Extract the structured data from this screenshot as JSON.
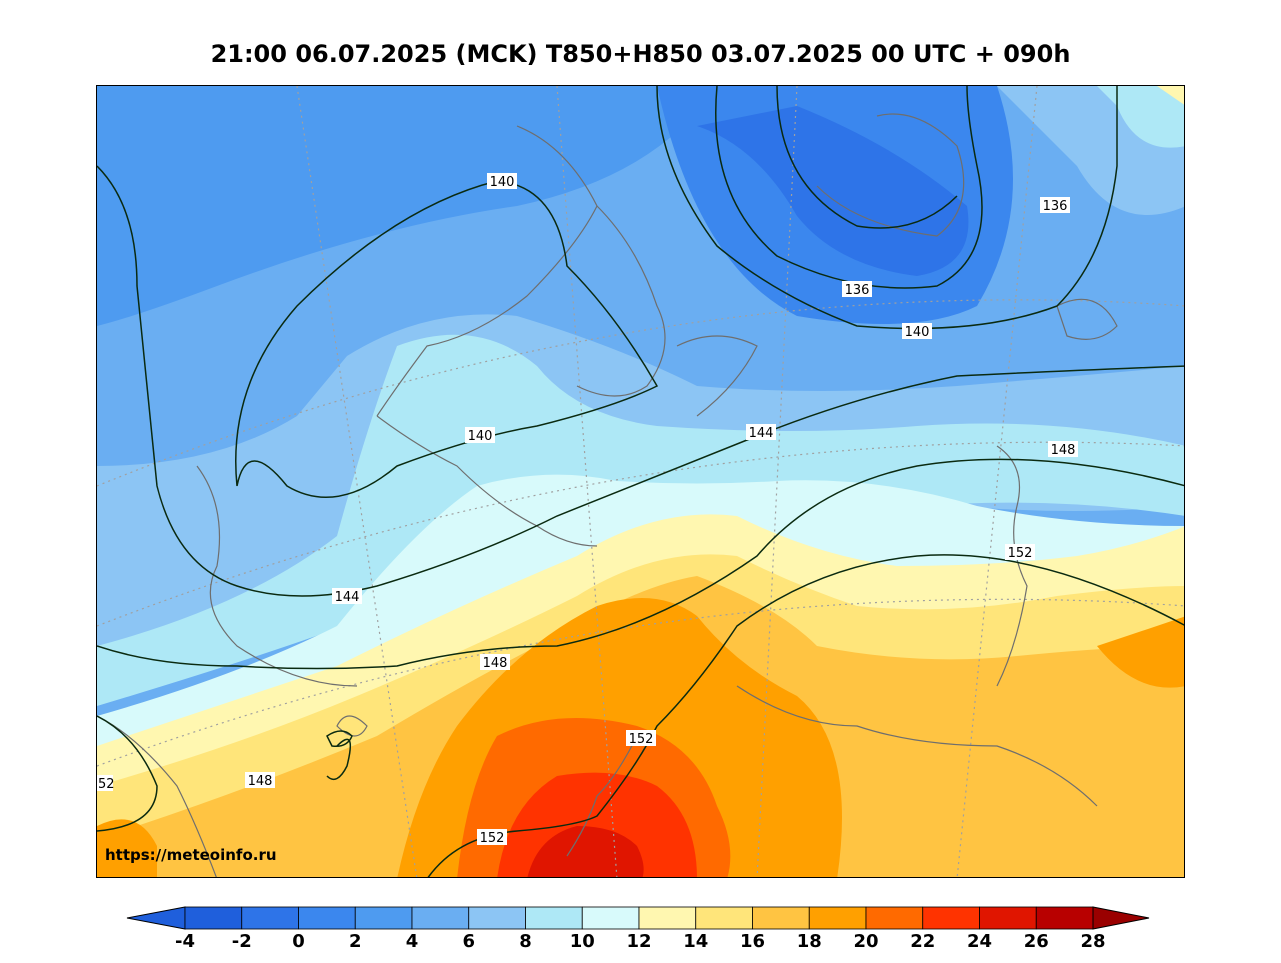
{
  "title": "21:00 06.07.2025 (MCK) T850+H850 03.07.2025 00 UTC + 090h",
  "watermark": "https://meteoinfo.ru",
  "colorbar": {
    "ticks": [
      "-4",
      "-2",
      "0",
      "2",
      "4",
      "6",
      "8",
      "10",
      "12",
      "14",
      "16",
      "18",
      "20",
      "22",
      "24",
      "26",
      "28"
    ],
    "colors": [
      "#1f5fdc",
      "#2e74e8",
      "#3b87ee",
      "#4e9bf0",
      "#6aaef2",
      "#8cc5f4",
      "#aee8f6",
      "#d8fafb",
      "#fff7b0",
      "#ffe57a",
      "#ffc442",
      "#ffa000",
      "#ff6a00",
      "#ff3300",
      "#e01500",
      "#b80000"
    ],
    "under_color": "#1f5fdc",
    "over_color": "#9a0000"
  },
  "contour_labels": {
    "l140a": "140",
    "l140b": "140",
    "l140c": "140",
    "l136a": "136",
    "l136b": "136",
    "l144a": "144",
    "l144b": "144",
    "l148a": "148",
    "l148b": "148",
    "l148c": "148",
    "l152a": "152",
    "l152b": "152",
    "l152c": "152",
    "l152d": "52"
  }
}
